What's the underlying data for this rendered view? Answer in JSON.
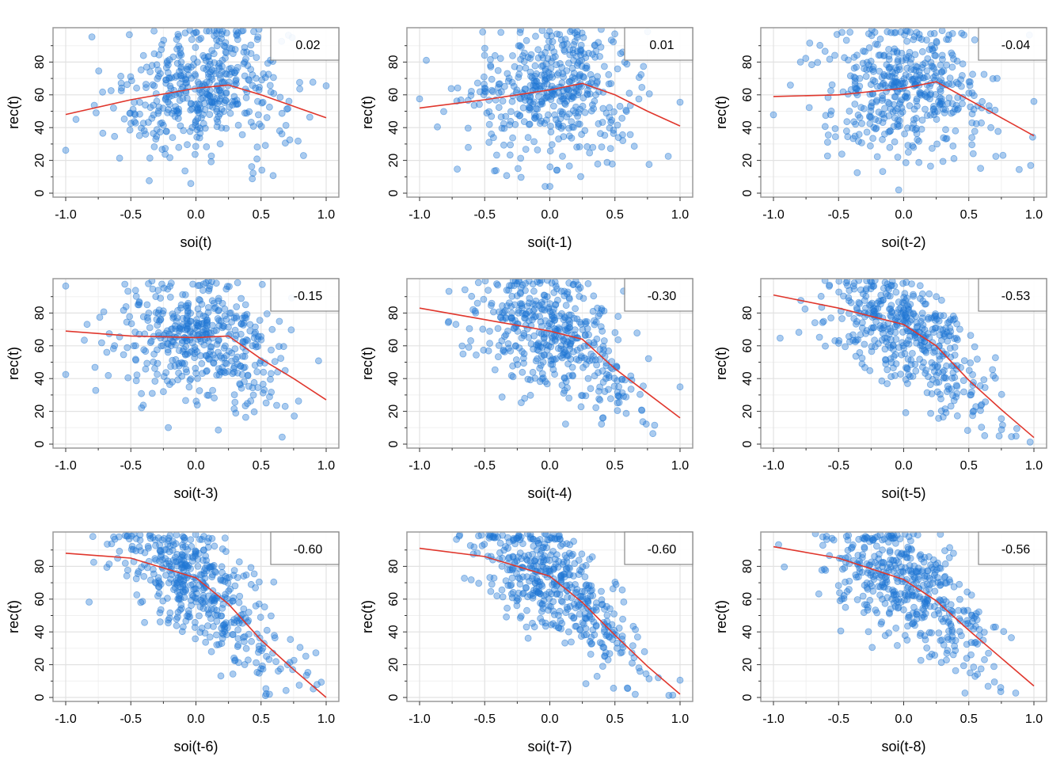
{
  "colors": {
    "points": "#1f77d4",
    "smooth": "#e0362c",
    "grid": "#e2e2e2",
    "panel_border": "#9a9a9a",
    "background": "#ffffff"
  },
  "chart_data": {
    "type": "scatter",
    "layout": "3x3 grid of panels",
    "y_axis_label": "rec(t)",
    "xlim": [
      -1.0,
      1.0
    ],
    "ylim": [
      0,
      100
    ],
    "x_ticks": [
      -1.0,
      -0.5,
      0.0,
      0.5,
      1.0
    ],
    "x_tick_labels": [
      "-1.0",
      "-0.5",
      "0.0",
      "0.5",
      "1.0"
    ],
    "y_ticks": [
      0,
      20,
      40,
      60,
      80
    ],
    "y_tick_labels": [
      "0",
      "20",
      "40",
      "60",
      "80"
    ],
    "grid": true,
    "legend_placement": "top-right (correlation label box)",
    "points_per_panel": 453,
    "panels": [
      {
        "xlabel": "soi(t)",
        "correlation": "0.02",
        "lowess": [
          [
            -1.0,
            48
          ],
          [
            -0.5,
            57
          ],
          [
            0.0,
            64
          ],
          [
            0.25,
            66
          ],
          [
            0.5,
            60
          ],
          [
            0.75,
            53
          ],
          [
            1.0,
            46
          ]
        ]
      },
      {
        "xlabel": "soi(t-1)",
        "correlation": "0.01",
        "lowess": [
          [
            -1.0,
            52
          ],
          [
            -0.5,
            57
          ],
          [
            0.0,
            63
          ],
          [
            0.25,
            67
          ],
          [
            0.5,
            60
          ],
          [
            0.75,
            50
          ],
          [
            1.0,
            41
          ]
        ]
      },
      {
        "xlabel": "soi(t-2)",
        "correlation": "-0.04",
        "lowess": [
          [
            -1.0,
            59
          ],
          [
            -0.5,
            60
          ],
          [
            0.0,
            64
          ],
          [
            0.25,
            68
          ],
          [
            0.5,
            57
          ],
          [
            0.75,
            46
          ],
          [
            1.0,
            35
          ]
        ]
      },
      {
        "xlabel": "soi(t-3)",
        "correlation": "-0.15",
        "lowess": [
          [
            -1.0,
            69
          ],
          [
            -0.5,
            66
          ],
          [
            0.0,
            65
          ],
          [
            0.25,
            66
          ],
          [
            0.5,
            52
          ],
          [
            0.75,
            40
          ],
          [
            1.0,
            27
          ]
        ]
      },
      {
        "xlabel": "soi(t-4)",
        "correlation": "-0.30",
        "lowess": [
          [
            -1.0,
            83
          ],
          [
            -0.5,
            76
          ],
          [
            0.0,
            69
          ],
          [
            0.25,
            64
          ],
          [
            0.5,
            46
          ],
          [
            0.75,
            31
          ],
          [
            1.0,
            16
          ]
        ]
      },
      {
        "xlabel": "soi(t-5)",
        "correlation": "-0.53",
        "lowess": [
          [
            -1.0,
            91
          ],
          [
            -0.5,
            83
          ],
          [
            0.0,
            73
          ],
          [
            0.25,
            60
          ],
          [
            0.5,
            39
          ],
          [
            0.75,
            21
          ],
          [
            1.0,
            4
          ]
        ]
      },
      {
        "xlabel": "soi(t-6)",
        "correlation": "-0.60",
        "lowess": [
          [
            -1.0,
            88
          ],
          [
            -0.5,
            85
          ],
          [
            0.0,
            73
          ],
          [
            0.25,
            57
          ],
          [
            0.5,
            35
          ],
          [
            0.75,
            17
          ],
          [
            1.0,
            0
          ]
        ]
      },
      {
        "xlabel": "soi(t-7)",
        "correlation": "-0.60",
        "lowess": [
          [
            -1.0,
            91
          ],
          [
            -0.5,
            86
          ],
          [
            0.0,
            74
          ],
          [
            0.25,
            58
          ],
          [
            0.5,
            38
          ],
          [
            0.75,
            19
          ],
          [
            1.0,
            2
          ]
        ]
      },
      {
        "xlabel": "soi(t-8)",
        "correlation": "-0.56",
        "lowess": [
          [
            -1.0,
            92
          ],
          [
            -0.5,
            85
          ],
          [
            0.0,
            72
          ],
          [
            0.25,
            59
          ],
          [
            0.5,
            41
          ],
          [
            0.75,
            24
          ],
          [
            1.0,
            7
          ]
        ]
      }
    ]
  }
}
